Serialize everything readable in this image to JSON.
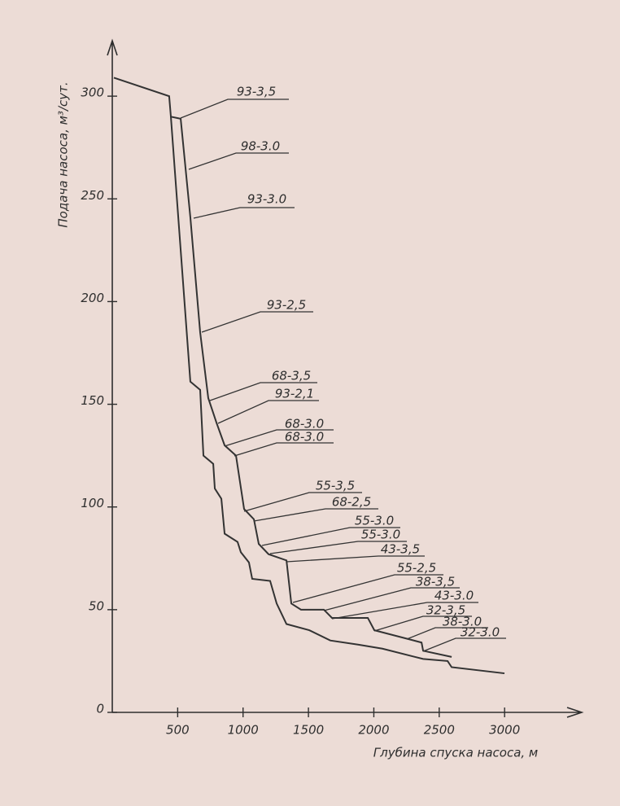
{
  "chart_data": {
    "type": "line",
    "x_label": "Глубина спуска насоса, м",
    "y_label": "Подача насоса, м³/сут.",
    "xlim": [
      0,
      3590
    ],
    "ylim": [
      0,
      327
    ],
    "xticks": [
      500,
      1000,
      1500,
      2000,
      2500,
      3000
    ],
    "yticks": [
      0,
      50,
      100,
      150,
      200,
      250,
      300
    ],
    "series": [
      {
        "color": "#333333",
        "x": [
          12,
          435,
          448,
          523,
          597,
          672,
          734,
          797,
          859,
          946,
          1008,
          1083,
          1120,
          1195,
          1332,
          1369,
          1443,
          1618,
          1680,
          1954,
          2004,
          2365,
          2377,
          2595
        ],
        "values": [
          309,
          300,
          290,
          289,
          241,
          185,
          153,
          141,
          130,
          125,
          99,
          94,
          82,
          77,
          74,
          53,
          50,
          50,
          46,
          46,
          40,
          34,
          30,
          27
        ]
      },
      {
        "color": "#333333",
        "x": [
          448,
          597,
          672,
          697,
          772,
          784,
          834,
          859,
          958,
          983,
          1045,
          1070,
          1207,
          1257,
          1332,
          1506,
          1667,
          1879,
          2066,
          2377,
          2564,
          2595,
          2999
        ],
        "values": [
          290,
          161,
          157,
          125,
          121,
          109,
          104,
          87,
          83,
          78,
          73,
          65,
          64,
          53,
          43,
          40,
          35,
          33,
          31,
          26,
          25,
          22,
          19
        ]
      }
    ],
    "annotations": [
      "93-3,5",
      "98-3.0",
      "93-3.0",
      "93-2,5",
      "68-3,5",
      "93-2,1",
      "68-3.0",
      "68-3.0",
      "55-3,5",
      "68-2,5",
      "55-3.0",
      "55-3.0",
      "43-3,5",
      "55-2,5",
      "38-3,5",
      "43-3.0",
      "32-3,5",
      "38-3.0",
      "32-3.0"
    ]
  }
}
